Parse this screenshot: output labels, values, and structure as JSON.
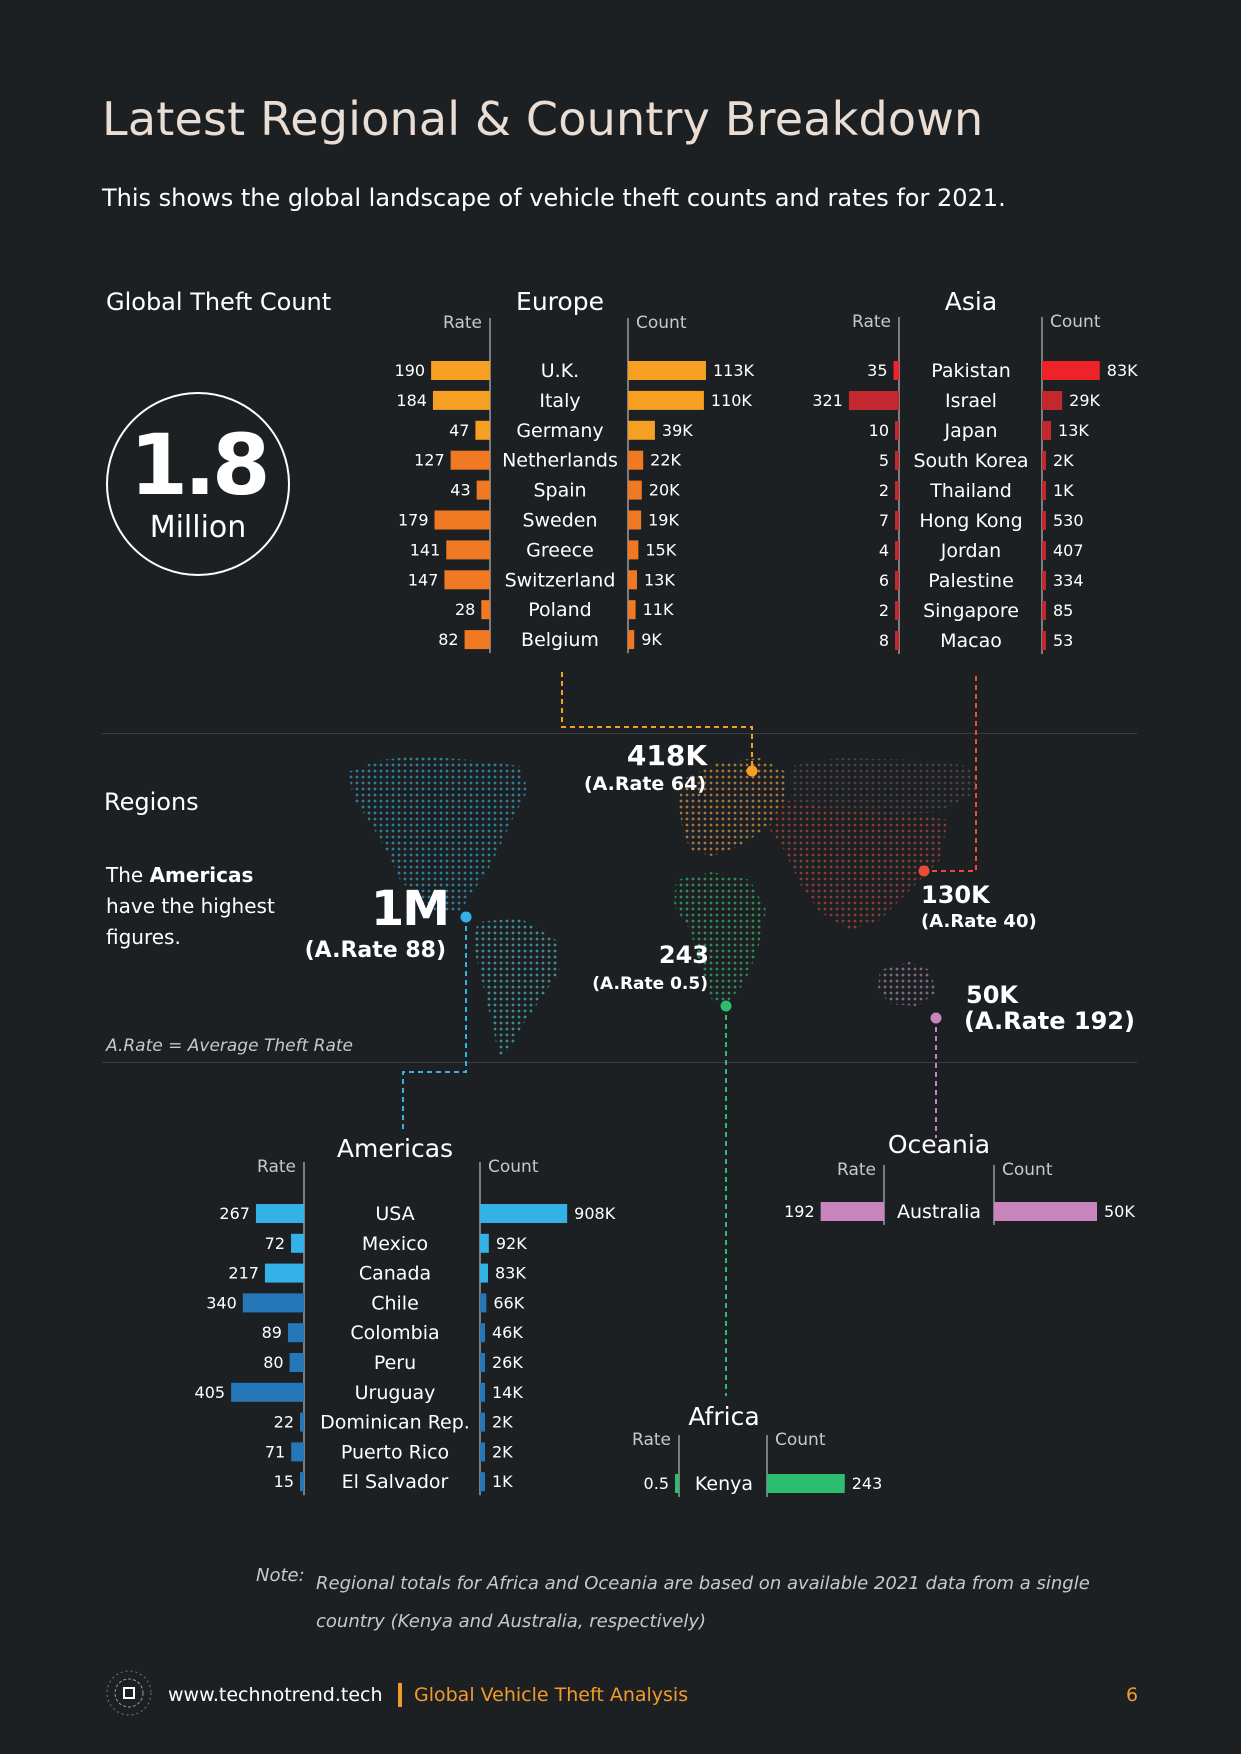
{
  "title": "Latest Regional & Country Breakdown",
  "subtitle": "This shows the global landscape of vehicle theft counts and rates for 2021.",
  "global": {
    "label": "Global Theft Count",
    "value": "1.8",
    "unit": "Million"
  },
  "regions_section": {
    "title": "Regions",
    "text_pre": "The ",
    "text_bold": "Americas",
    "text_post": " have the highest figures.",
    "legend_note": "A.Rate = Average Theft Rate"
  },
  "map_callouts": {
    "europe": {
      "count": "418K",
      "rate": "(A.Rate 64)"
    },
    "asia": {
      "count": "130K",
      "rate": "(A.Rate 40)"
    },
    "americas": {
      "count": "1M",
      "rate": "(A.Rate 88)"
    },
    "africa": {
      "count": "243",
      "rate": "(A.Rate 0.5)"
    },
    "oceania": {
      "count": "50K",
      "rate": "(A.Rate 192)"
    }
  },
  "chart_data": [
    {
      "type": "bar",
      "title": "Europe",
      "rate_label": "Rate",
      "count_label": "Count",
      "color": "#f5a023",
      "color2": "#f07a24",
      "countries": [
        "U.K.",
        "Italy",
        "Germany",
        "Netherlands",
        "Spain",
        "Sweden",
        "Greece",
        "Switzerland",
        "Poland",
        "Belgium"
      ],
      "rate": [
        190,
        184,
        47,
        127,
        43,
        179,
        141,
        147,
        28,
        82
      ],
      "count": [
        113000,
        110000,
        39000,
        22000,
        20000,
        19000,
        15000,
        13000,
        11000,
        9000
      ],
      "count_labels": [
        "113K",
        "110K",
        "39K",
        "22K",
        "20K",
        "19K",
        "15K",
        "13K",
        "11K",
        "9K"
      ]
    },
    {
      "type": "bar",
      "title": "Asia",
      "rate_label": "Rate",
      "count_label": "Count",
      "color": "#ee2229",
      "color2": "#c2282e",
      "countries": [
        "Pakistan",
        "Israel",
        "Japan",
        "South Korea",
        "Thailand",
        "Hong Kong",
        "Jordan",
        "Palestine",
        "Singapore",
        "Macao"
      ],
      "rate": [
        35,
        321,
        10,
        5,
        2,
        7,
        4,
        6,
        2,
        8
      ],
      "count": [
        83000,
        29000,
        13000,
        2000,
        1000,
        530,
        407,
        334,
        85,
        53
      ],
      "count_labels": [
        "83K",
        "29K",
        "13K",
        "2K",
        "1K",
        "530",
        "407",
        "334",
        "85",
        "53"
      ]
    },
    {
      "type": "bar",
      "title": "Americas",
      "rate_label": "Rate",
      "count_label": "Count",
      "color": "#33b2e8",
      "color2": "#2677b8",
      "countries": [
        "USA",
        "Mexico",
        "Canada",
        "Chile",
        "Colombia",
        "Peru",
        "Uruguay",
        "Dominican Rep.",
        "Puerto Rico",
        "El Salvador"
      ],
      "rate": [
        267,
        72,
        217,
        340,
        89,
        80,
        405,
        22,
        71,
        15
      ],
      "count": [
        908000,
        92000,
        83000,
        66000,
        46000,
        26000,
        14000,
        2000,
        2000,
        1000
      ],
      "count_labels": [
        "908K",
        "92K",
        "83K",
        "66K",
        "46K",
        "26K",
        "14K",
        "2K",
        "2K",
        "1K"
      ]
    },
    {
      "type": "bar",
      "title": "Oceania",
      "rate_label": "Rate",
      "count_label": "Count",
      "color": "#c784bd",
      "countries": [
        "Australia"
      ],
      "rate": [
        192
      ],
      "count": [
        50000
      ],
      "count_labels": [
        "50K"
      ]
    },
    {
      "type": "bar",
      "title": "Africa",
      "rate_label": "Rate",
      "count_label": "Count",
      "color": "#2dbd6e",
      "countries": [
        "Kenya"
      ],
      "rate": [
        0.5
      ],
      "count": [
        243
      ],
      "count_labels": [
        "243"
      ]
    }
  ],
  "footnote": {
    "label": "Note:",
    "text": "Regional totals for Africa and Oceania are based on available 2021 data from a single country (Kenya and Australia, respectively)"
  },
  "footer": {
    "url": "www.technotrend.tech",
    "doc_title": "Global Vehicle Theft Analysis",
    "page": "6"
  }
}
